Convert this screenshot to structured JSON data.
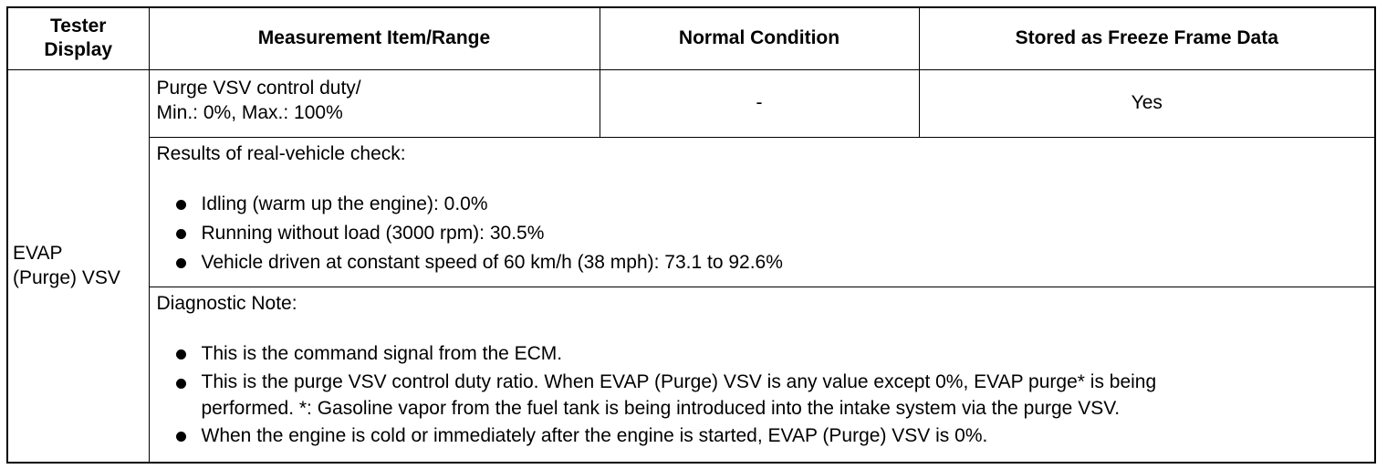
{
  "headers": {
    "tester_display": [
      "Tester",
      "Display"
    ],
    "measurement": "Measurement Item/Range",
    "normal": "Normal Condition",
    "freeze": "Stored as Freeze Frame Data"
  },
  "row": {
    "tester_display": [
      "EVAP",
      "(Purge) VSV"
    ],
    "measurement": [
      "Purge VSV control duty/",
      "Min.: 0%, Max.: 100%"
    ],
    "normal": "-",
    "freeze": "Yes"
  },
  "results": {
    "title": "Results of real-vehicle check:",
    "items": [
      "Idling (warm up the engine): 0.0%",
      "Running without load (3000 rpm): 30.5%",
      "Vehicle driven at constant speed of 60 km/h (38 mph): 73.1 to 92.6%"
    ]
  },
  "diagnostic": {
    "title": "Diagnostic Note:",
    "items": [
      [
        "This is the command signal from the ECM."
      ],
      [
        "This is the purge VSV control duty ratio. When EVAP (Purge) VSV is any value except 0%, EVAP purge* is being",
        "performed. *: Gasoline vapor from the fuel tank is being introduced into the intake system via the purge VSV."
      ],
      [
        "When the engine is cold or immediately after the engine is started, EVAP (Purge) VSV is 0%."
      ]
    ]
  }
}
